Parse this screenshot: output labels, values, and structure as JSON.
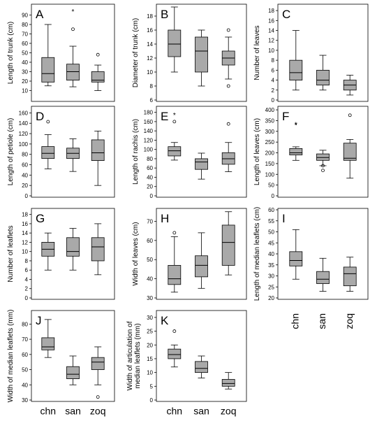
{
  "colors": {
    "box_fill": "#a9a9a9",
    "line": "#000000",
    "background": "#ffffff"
  },
  "groups": [
    "chn",
    "san",
    "zoq"
  ],
  "chart_data": [
    {
      "panel": "A",
      "type": "boxplot",
      "categories": [
        "chn",
        "san",
        "zoq"
      ],
      "ylabel": "Length of trunk (cm)",
      "ylim": [
        0,
        100
      ],
      "yticks": [
        10,
        20,
        30,
        40,
        50,
        60,
        70,
        80,
        90
      ],
      "boxes": [
        {
          "min": 15,
          "q1": 19,
          "median": 28,
          "q3": 45,
          "max": 80,
          "outliers": []
        },
        {
          "min": 14,
          "q1": 21,
          "median": 30,
          "q3": 38,
          "max": 57,
          "outliers": [
            75
          ],
          "extremes": [
            94
          ]
        },
        {
          "min": 10,
          "q1": 19,
          "median": 21,
          "q3": 30,
          "max": 37,
          "outliers": [
            48
          ]
        }
      ]
    },
    {
      "panel": "B",
      "type": "boxplot",
      "categories": [
        "chn",
        "san",
        "zoq"
      ],
      "ylabel": "Diameter of trunk (cm)",
      "ylim": [
        6,
        19.5
      ],
      "yticks": [
        6,
        8,
        10,
        12,
        14,
        16,
        18
      ],
      "boxes": [
        {
          "min": 10,
          "q1": 12.2,
          "median": 14,
          "q3": 16,
          "max": 19.3,
          "outliers": []
        },
        {
          "min": 8,
          "q1": 10,
          "median": 13,
          "q3": 15,
          "max": 16,
          "outliers": []
        },
        {
          "min": 9,
          "q1": 11,
          "median": 12,
          "q3": 13,
          "max": 15,
          "outliers": [
            16,
            8
          ]
        }
      ]
    },
    {
      "panel": "C",
      "type": "boxplot",
      "categories": [
        "chn",
        "san",
        "zoq"
      ],
      "ylabel": "Number of leaves",
      "ylim": [
        0,
        19
      ],
      "yticks": [
        0,
        2,
        4,
        6,
        8,
        10,
        12,
        14,
        16,
        18
      ],
      "boxes": [
        {
          "min": 2,
          "q1": 4,
          "median": 5.5,
          "q3": 8,
          "max": 14,
          "outliers": []
        },
        {
          "min": 2,
          "q1": 3,
          "median": 4,
          "q3": 6,
          "max": 9,
          "outliers": []
        },
        {
          "min": 1,
          "q1": 2,
          "median": 3,
          "q3": 4,
          "max": 5,
          "outliers": []
        }
      ]
    },
    {
      "panel": "D",
      "type": "boxplot",
      "categories": [
        "chn",
        "san",
        "zoq"
      ],
      "ylabel": "Length of petiole (cm)",
      "ylim": [
        0,
        170
      ],
      "yticks": [
        0,
        20,
        40,
        60,
        80,
        100,
        120,
        140,
        160
      ],
      "boxes": [
        {
          "min": 52,
          "q1": 72,
          "median": 82,
          "q3": 95,
          "max": 118,
          "outliers": [
            143
          ]
        },
        {
          "min": 47,
          "q1": 72,
          "median": 82,
          "q3": 92,
          "max": 110,
          "outliers": []
        },
        {
          "min": 20,
          "q1": 68,
          "median": 83,
          "q3": 108,
          "max": 125,
          "outliers": []
        }
      ]
    },
    {
      "panel": "E",
      "type": "boxplot",
      "categories": [
        "chn",
        "san",
        "zoq"
      ],
      "ylabel": "Length of rachis (cm)",
      "ylim": [
        0,
        190
      ],
      "yticks": [
        0,
        20,
        40,
        60,
        80,
        100,
        120,
        140,
        160,
        180
      ],
      "boxes": [
        {
          "min": 77,
          "q1": 86,
          "median": 97,
          "q3": 106,
          "max": 115,
          "outliers": [
            160
          ],
          "extremes": [
            175
          ]
        },
        {
          "min": 36,
          "q1": 57,
          "median": 73,
          "q3": 80,
          "max": 92,
          "outliers": []
        },
        {
          "min": 52,
          "q1": 68,
          "median": 80,
          "q3": 93,
          "max": 115,
          "outliers": [
            155
          ]
        }
      ]
    },
    {
      "panel": "F",
      "type": "boxplot",
      "categories": [
        "chn",
        "san",
        "zoq"
      ],
      "ylabel": "Length of leaves (cm)",
      "ylim": [
        0,
        410
      ],
      "yticks": [
        0,
        50,
        100,
        150,
        200,
        250,
        300,
        350,
        400
      ],
      "boxes": [
        {
          "min": 165,
          "q1": 190,
          "median": 200,
          "q3": 220,
          "max": 228,
          "outliers": [],
          "extremes": [
            330,
            333
          ]
        },
        {
          "min": 140,
          "q1": 165,
          "median": 178,
          "q3": 195,
          "max": 212,
          "outliers": [
            118,
            140
          ]
        },
        {
          "min": 82,
          "q1": 165,
          "median": 175,
          "q3": 245,
          "max": 262,
          "outliers": [
            375
          ]
        }
      ]
    },
    {
      "panel": "G",
      "type": "boxplot",
      "categories": [
        "chn",
        "san",
        "zoq"
      ],
      "ylabel": "Number of leaflets",
      "ylim": [
        0,
        19
      ],
      "yticks": [
        0,
        2,
        4,
        6,
        8,
        10,
        12,
        14,
        16,
        18
      ],
      "boxes": [
        {
          "min": 6,
          "q1": 9,
          "median": 10.5,
          "q3": 12,
          "max": 14,
          "outliers": []
        },
        {
          "min": 6,
          "q1": 9,
          "median": 10,
          "q3": 13,
          "max": 15,
          "outliers": []
        },
        {
          "min": 5,
          "q1": 8,
          "median": 11,
          "q3": 13,
          "max": 16,
          "outliers": []
        }
      ]
    },
    {
      "panel": "H",
      "type": "boxplot",
      "categories": [
        "chn",
        "san",
        "zoq"
      ],
      "ylabel": "Width of leaves (cm)",
      "ylim": [
        30,
        76
      ],
      "yticks": [
        30,
        40,
        50,
        60,
        70
      ],
      "boxes": [
        {
          "min": 33,
          "q1": 37,
          "median": 40,
          "q3": 47,
          "max": 62,
          "outliers": [
            64
          ]
        },
        {
          "min": 35,
          "q1": 41,
          "median": 47,
          "q3": 52,
          "max": 64,
          "outliers": []
        },
        {
          "min": 42,
          "q1": 47,
          "median": 59,
          "q3": 68,
          "max": 75,
          "outliers": []
        }
      ]
    },
    {
      "panel": "I",
      "type": "boxplot",
      "categories": [
        "chn",
        "san",
        "zoq"
      ],
      "ylabel": "Length of median leaflets (cm)",
      "ylim": [
        20,
        60
      ],
      "yticks": [
        20,
        25,
        30,
        35,
        40,
        45,
        50,
        55,
        60
      ],
      "boxes": [
        {
          "min": 28.5,
          "q1": 34.5,
          "median": 37,
          "q3": 41,
          "max": 51,
          "outliers": []
        },
        {
          "min": 23,
          "q1": 26.5,
          "median": 28.5,
          "q3": 32,
          "max": 38,
          "outliers": []
        },
        {
          "min": 23,
          "q1": 25.5,
          "median": 31,
          "q3": 34,
          "max": 38.5,
          "outliers": []
        }
      ]
    },
    {
      "panel": "J",
      "type": "boxplot",
      "categories": [
        "chn",
        "san",
        "zoq"
      ],
      "ylabel": "Width of median leaflets (mm)",
      "ylim": [
        30,
        88
      ],
      "yticks": [
        30,
        40,
        50,
        60,
        70,
        80
      ],
      "boxes": [
        {
          "min": 58,
          "q1": 63,
          "median": 65,
          "q3": 71,
          "max": 83,
          "outliers": []
        },
        {
          "min": 40,
          "q1": 44,
          "median": 47,
          "q3": 52,
          "max": 59,
          "outliers": []
        },
        {
          "min": 40,
          "q1": 50,
          "median": 55,
          "q3": 58,
          "max": 65,
          "outliers": [
            32
          ]
        }
      ]
    },
    {
      "panel": "K",
      "type": "boxplot",
      "categories": [
        "chn",
        "san",
        "zoq"
      ],
      "ylabel": [
        "Width of articulation of",
        "median leaflets (mm)"
      ],
      "ylim": [
        0,
        32
      ],
      "yticks": [
        0,
        5,
        10,
        15,
        20,
        25,
        30
      ],
      "boxes": [
        {
          "min": 12,
          "q1": 15,
          "median": 16.5,
          "q3": 18.5,
          "max": 20,
          "outliers": [
            25
          ]
        },
        {
          "min": 8,
          "q1": 10,
          "median": 11.5,
          "q3": 14,
          "max": 16,
          "outliers": []
        },
        {
          "min": 4,
          "q1": 5,
          "median": 6,
          "q3": 7.5,
          "max": 10,
          "outliers": []
        }
      ]
    }
  ]
}
